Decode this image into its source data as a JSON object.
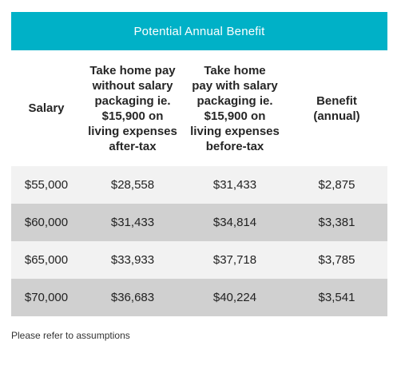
{
  "table": {
    "title": "Potential Annual Benefit",
    "headers": [
      "Salary",
      "Take home pay\nwithout salary\npackaging ie.\n$15,900 on\nliving expenses\nafter-tax",
      "Take home\npay with salary\npackaging ie.\n$15,900 on\nliving expenses\nbefore-tax",
      "Benefit\n(annual)"
    ],
    "rows": [
      [
        "$55,000",
        "$28,558",
        "$31,433",
        "$2,875"
      ],
      [
        "$60,000",
        "$31,433",
        "$34,814",
        "$3,381"
      ],
      [
        "$65,000",
        "$33,933",
        "$37,718",
        "$3,785"
      ],
      [
        "$70,000",
        "$36,683",
        "$40,224",
        "$3,541"
      ]
    ],
    "colors": {
      "title_bg": "#00b1c7",
      "row_light": "#f2f2f2",
      "row_dark": "#d0d0d0"
    }
  },
  "footnote": "Please refer to assumptions"
}
